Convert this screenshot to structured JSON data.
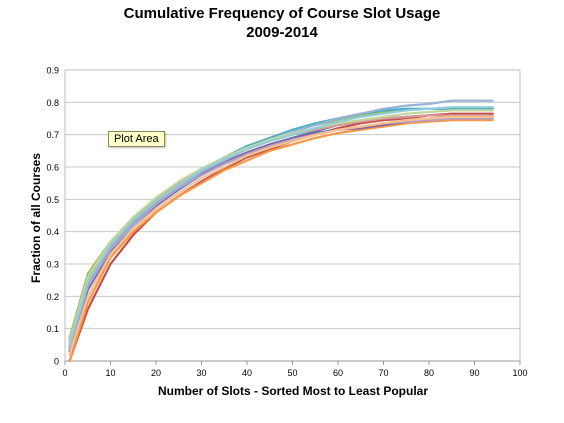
{
  "chart_data": {
    "type": "line",
    "title": "Cumulative Frequency of Course Slot Usage",
    "subtitle": "2009-2014",
    "xlabel": "Number of Slots - Sorted Most to Least Popular",
    "ylabel": "Fraction of all Courses",
    "xlim": [
      0,
      100
    ],
    "ylim": [
      0,
      0.9
    ],
    "x_ticks": [
      "0",
      "10",
      "20",
      "30",
      "40",
      "50",
      "60",
      "70",
      "80",
      "90",
      "100"
    ],
    "y_ticks": [
      "0",
      "0.1",
      "0.2",
      "0.3",
      "0.4",
      "0.5",
      "0.6",
      "0.7",
      "0.8",
      "0.9"
    ],
    "grid": "horizontal",
    "legend": "none",
    "tooltip": "Plot Area",
    "series": [
      {
        "color": "#9bbb59",
        "x": [
          1,
          5,
          10,
          15,
          20,
          25,
          30,
          35,
          40,
          45,
          50,
          55,
          60,
          65,
          70,
          75,
          80,
          85,
          90,
          94
        ],
        "values": [
          0.07,
          0.27,
          0.37,
          0.44,
          0.5,
          0.55,
          0.59,
          0.63,
          0.66,
          0.69,
          0.71,
          0.73,
          0.745,
          0.76,
          0.77,
          0.78,
          0.78,
          0.78,
          0.78,
          0.78
        ]
      },
      {
        "color": "#4f81bd",
        "x": [
          1,
          5,
          10,
          15,
          20,
          25,
          30,
          35,
          40,
          45,
          50,
          55,
          60,
          65,
          70,
          75,
          80,
          85,
          90,
          94
        ],
        "values": [
          0.06,
          0.25,
          0.35,
          0.42,
          0.48,
          0.53,
          0.575,
          0.61,
          0.64,
          0.67,
          0.69,
          0.71,
          0.73,
          0.74,
          0.75,
          0.755,
          0.76,
          0.76,
          0.76,
          0.76
        ]
      },
      {
        "color": "#c0504d",
        "x": [
          1,
          5,
          10,
          15,
          20,
          25,
          30,
          35,
          40,
          45,
          50,
          55,
          60,
          65,
          70,
          75,
          80,
          85,
          90,
          94
        ],
        "values": [
          0.0,
          0.16,
          0.3,
          0.39,
          0.46,
          0.51,
          0.555,
          0.595,
          0.63,
          0.655,
          0.68,
          0.7,
          0.72,
          0.735,
          0.745,
          0.75,
          0.76,
          0.765,
          0.765,
          0.765
        ]
      },
      {
        "color": "#f79646",
        "x": [
          1,
          5,
          10,
          15,
          20,
          25,
          30,
          35,
          40,
          45,
          50,
          55,
          60,
          65,
          70,
          75,
          80,
          85,
          90,
          94
        ],
        "values": [
          0.0,
          0.18,
          0.32,
          0.4,
          0.46,
          0.51,
          0.55,
          0.59,
          0.62,
          0.65,
          0.67,
          0.69,
          0.705,
          0.715,
          0.725,
          0.735,
          0.74,
          0.745,
          0.745,
          0.745
        ]
      },
      {
        "color": "#8064a2",
        "x": [
          1,
          5,
          10,
          15,
          20,
          25,
          30,
          35,
          40,
          45,
          50,
          55,
          60,
          65,
          70,
          75,
          80,
          85,
          90,
          94
        ],
        "values": [
          0.03,
          0.22,
          0.34,
          0.42,
          0.48,
          0.535,
          0.58,
          0.615,
          0.645,
          0.67,
          0.69,
          0.705,
          0.715,
          0.72,
          0.73,
          0.74,
          0.75,
          0.755,
          0.755,
          0.755
        ]
      },
      {
        "color": "#4bacc6",
        "x": [
          1,
          5,
          10,
          15,
          20,
          25,
          30,
          35,
          40,
          45,
          50,
          55,
          60,
          65,
          70,
          75,
          80,
          85,
          90,
          94
        ],
        "values": [
          0.05,
          0.24,
          0.355,
          0.43,
          0.49,
          0.545,
          0.59,
          0.63,
          0.665,
          0.69,
          0.715,
          0.735,
          0.75,
          0.765,
          0.775,
          0.78,
          0.78,
          0.78,
          0.78,
          0.78
        ]
      },
      {
        "color": "#95b3d7",
        "x": [
          1,
          5,
          10,
          15,
          20,
          25,
          30,
          35,
          40,
          45,
          50,
          55,
          60,
          65,
          70,
          75,
          80,
          85,
          90,
          94
        ],
        "values": [
          0.04,
          0.23,
          0.345,
          0.42,
          0.485,
          0.54,
          0.585,
          0.62,
          0.655,
          0.685,
          0.71,
          0.73,
          0.75,
          0.765,
          0.78,
          0.79,
          0.795,
          0.805,
          0.805,
          0.805
        ]
      },
      {
        "color": "#d99694",
        "x": [
          1,
          5,
          10,
          15,
          20,
          25,
          30,
          35,
          40,
          45,
          50,
          55,
          60,
          65,
          70,
          75,
          80,
          85,
          90,
          94
        ],
        "values": [
          0.05,
          0.25,
          0.36,
          0.435,
          0.495,
          0.55,
          0.59,
          0.625,
          0.655,
          0.68,
          0.7,
          0.715,
          0.73,
          0.74,
          0.75,
          0.755,
          0.76,
          0.76,
          0.76,
          0.76
        ]
      },
      {
        "color": "#c3d69b",
        "x": [
          1,
          5,
          10,
          15,
          20,
          25,
          30,
          35,
          40,
          45,
          50,
          55,
          60,
          65,
          70,
          75,
          80,
          85,
          90,
          94
        ],
        "values": [
          0.06,
          0.26,
          0.37,
          0.445,
          0.505,
          0.555,
          0.595,
          0.63,
          0.66,
          0.685,
          0.705,
          0.72,
          0.735,
          0.745,
          0.755,
          0.765,
          0.77,
          0.775,
          0.775,
          0.775
        ]
      },
      {
        "color": "#b2a1c7",
        "x": [
          1,
          5,
          10,
          15,
          20,
          25,
          30,
          35,
          40,
          45,
          50,
          55,
          60,
          65,
          70,
          75,
          80,
          85,
          90,
          94
        ],
        "values": [
          0.04,
          0.235,
          0.35,
          0.425,
          0.485,
          0.535,
          0.575,
          0.61,
          0.64,
          0.665,
          0.685,
          0.7,
          0.715,
          0.725,
          0.735,
          0.74,
          0.745,
          0.75,
          0.75,
          0.75
        ]
      },
      {
        "color": "#fac08f",
        "x": [
          1,
          5,
          10,
          15,
          20,
          25,
          30,
          35,
          40,
          45,
          50,
          55,
          60,
          65,
          70,
          75,
          80,
          85,
          90,
          94
        ],
        "values": [
          0.02,
          0.2,
          0.33,
          0.41,
          0.47,
          0.52,
          0.565,
          0.6,
          0.635,
          0.66,
          0.68,
          0.7,
          0.715,
          0.725,
          0.735,
          0.745,
          0.75,
          0.755,
          0.755,
          0.755
        ]
      },
      {
        "color": "#92cddc",
        "x": [
          1,
          5,
          10,
          15,
          20,
          25,
          30,
          35,
          40,
          45,
          50,
          55,
          60,
          65,
          70,
          75,
          80,
          85,
          90,
          94
        ],
        "values": [
          0.05,
          0.245,
          0.36,
          0.435,
          0.495,
          0.545,
          0.59,
          0.625,
          0.655,
          0.68,
          0.7,
          0.72,
          0.74,
          0.755,
          0.765,
          0.775,
          0.78,
          0.785,
          0.785,
          0.785
        ]
      }
    ]
  }
}
